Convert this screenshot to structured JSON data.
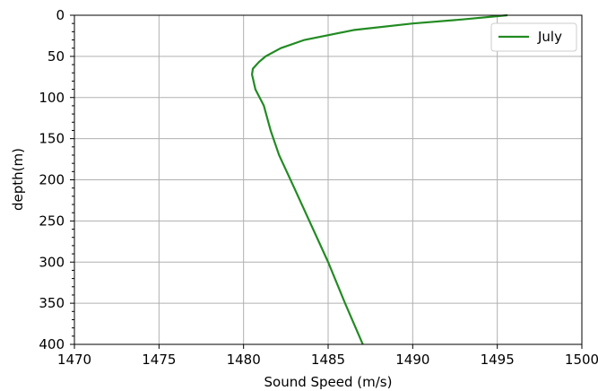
{
  "chart_data": {
    "type": "line",
    "title": "",
    "xlabel": "Sound Speed (m/s)",
    "ylabel": "depth(m)",
    "xlim": [
      1470,
      1500
    ],
    "ylim": [
      400,
      0
    ],
    "xticks": [
      1470,
      1475,
      1480,
      1485,
      1490,
      1495,
      1500
    ],
    "yticks": [
      0,
      50,
      100,
      150,
      200,
      250,
      300,
      350,
      400
    ],
    "grid": true,
    "legend_position": "top-right",
    "series": [
      {
        "name": "July",
        "color": "#228B22",
        "x": [
          1495.6,
          1493.0,
          1490.0,
          1486.5,
          1483.6,
          1482.2,
          1481.3,
          1480.9,
          1480.55,
          1480.5,
          1480.7,
          1481.2,
          1481.6,
          1482.1,
          1483.0,
          1484.0,
          1485.0,
          1486.0,
          1487.05
        ],
        "y": [
          0,
          5,
          10,
          18,
          30,
          40,
          50,
          57,
          65,
          72,
          90,
          110,
          140,
          170,
          210,
          255,
          300,
          350,
          400
        ]
      }
    ]
  }
}
